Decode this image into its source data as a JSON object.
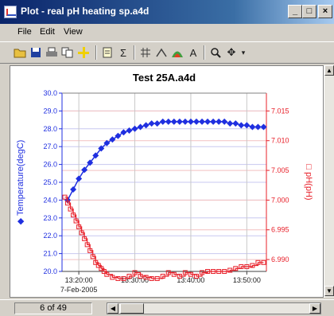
{
  "window": {
    "title": "Plot - real pH heating sp.a4d"
  },
  "window_buttons": {
    "minimize": "_",
    "maximize": "□",
    "close": "×"
  },
  "menu": {
    "items": [
      "File",
      "Edit",
      "View"
    ]
  },
  "toolbar": {
    "icons": [
      "open-folder-icon",
      "save-icon",
      "print-icon",
      "copy-icon",
      "crosshair-icon",
      "notes-icon",
      "sigma-icon",
      "grid-icon",
      "peak-icon",
      "area-icon",
      "text-marker-icon",
      "zoom-icon",
      "pan-icon",
      "dropdown-arrow-icon"
    ]
  },
  "status": {
    "page_indicator": "6 of 49"
  },
  "chart_data": {
    "type": "line",
    "title": "Test 25A.a4d",
    "xlabel": "",
    "x_tick_labels": [
      "13:20:00",
      "13:30:00",
      "13:40:00",
      "13:50:00"
    ],
    "x_sub_label": "7-Feb-2005",
    "x_range_min": [
      17.0,
      53.5
    ],
    "y_left": {
      "label": "Temperature(degC)",
      "ylim": [
        20.0,
        30.0
      ],
      "ticks": [
        "20.0",
        "21.0",
        "22.0",
        "23.0",
        "24.0",
        "25.0",
        "26.0",
        "27.0",
        "28.0",
        "29.0",
        "30.0"
      ],
      "color": "#1f2fe0"
    },
    "y_right": {
      "label": "pH(pH)",
      "ylim": [
        6.988,
        7.018
      ],
      "ticks": [
        "6.990",
        "6.995",
        "7.000",
        "7.005",
        "7.010",
        "7.015"
      ],
      "color": "#e8202a"
    },
    "grid": true,
    "series": [
      {
        "name": "Temperature(degC)",
        "axis": "left",
        "marker": "diamond",
        "color": "#1f2fe0",
        "x_min": [
          18.0,
          19.0,
          20.0,
          21.0,
          22.0,
          23.0,
          24.0,
          25.0,
          26.0,
          27.0,
          28.0,
          29.0,
          30.0,
          31.0,
          32.0,
          33.0,
          34.0,
          35.0,
          36.0,
          37.0,
          38.0,
          39.0,
          40.0,
          41.0,
          42.0,
          43.0,
          44.0,
          45.0,
          46.0,
          47.0,
          48.0,
          49.0,
          50.0,
          51.0,
          52.0,
          53.0
        ],
        "values": [
          24.0,
          24.6,
          25.2,
          25.7,
          26.1,
          26.5,
          26.9,
          27.2,
          27.4,
          27.6,
          27.8,
          27.9,
          28.0,
          28.1,
          28.2,
          28.3,
          28.3,
          28.4,
          28.4,
          28.4,
          28.4,
          28.4,
          28.4,
          28.4,
          28.4,
          28.4,
          28.4,
          28.4,
          28.4,
          28.3,
          28.3,
          28.2,
          28.2,
          28.1,
          28.1,
          28.1
        ]
      },
      {
        "name": "pH(pH)",
        "axis": "right",
        "marker": "square",
        "color": "#e8202a",
        "x_min": [
          17.5,
          18.0,
          18.5,
          19.0,
          19.5,
          20.0,
          20.5,
          21.0,
          21.5,
          22.0,
          22.5,
          23.0,
          23.5,
          24.0,
          24.5,
          25.0,
          26.0,
          27.0,
          28.0,
          29.0,
          30.0,
          31.0,
          32.0,
          33.0,
          34.0,
          35.0,
          36.0,
          37.0,
          38.0,
          39.0,
          40.0,
          41.0,
          42.0,
          43.0,
          44.0,
          45.0,
          46.0,
          47.0,
          48.0,
          49.0,
          50.0,
          51.0,
          52.0,
          53.0
        ],
        "values": [
          7.0005,
          6.9995,
          6.9985,
          6.9975,
          6.9965,
          6.9955,
          6.9945,
          6.9935,
          6.9925,
          6.9915,
          6.9905,
          6.9895,
          6.989,
          6.9885,
          6.988,
          6.9875,
          6.987,
          6.9868,
          6.9868,
          6.9872,
          6.9878,
          6.9872,
          6.987,
          6.9868,
          6.9868,
          6.9872,
          6.9878,
          6.9875,
          6.9872,
          6.9878,
          6.9875,
          6.9872,
          6.9878,
          6.988,
          6.988,
          6.988,
          6.988,
          6.9882,
          6.9885,
          6.9888,
          6.9888,
          6.989,
          6.9895,
          6.9895
        ]
      }
    ]
  }
}
